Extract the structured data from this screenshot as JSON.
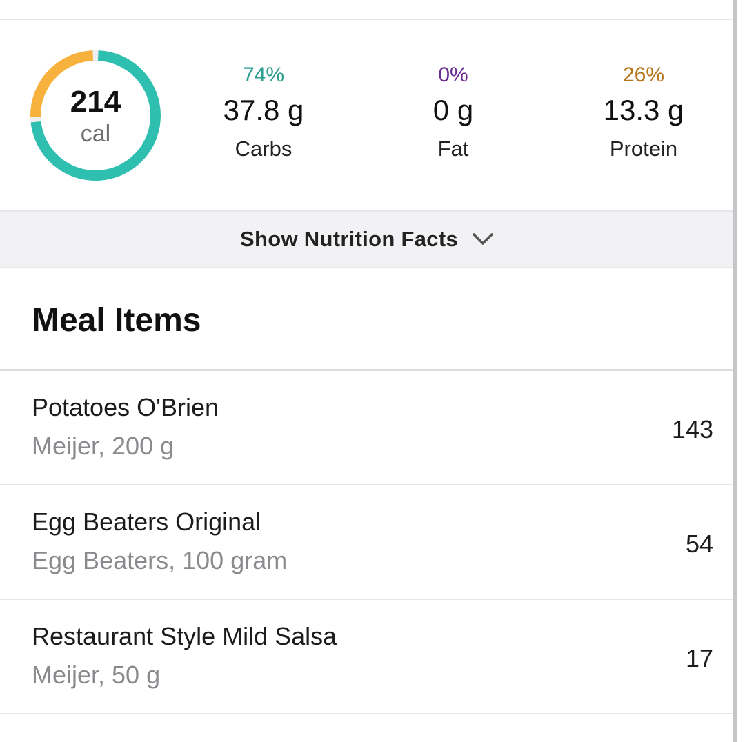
{
  "summary": {
    "calories": "214",
    "calories_unit": "cal",
    "ring": {
      "carbs_pct": 74,
      "fat_pct": 0,
      "protein_pct": 26
    },
    "macros": [
      {
        "pct": "74%",
        "grams": "37.8 g",
        "label": "Carbs",
        "color": "#2a9d8f"
      },
      {
        "pct": "0%",
        "grams": "0 g",
        "label": "Fat",
        "color": "#6b2c91"
      },
      {
        "pct": "26%",
        "grams": "13.3 g",
        "label": "Protein",
        "color": "#b5771a"
      }
    ],
    "ring_colors": {
      "carbs": "#2fbfb0",
      "protein": "#f6b23c",
      "fat": "#6b2c91"
    }
  },
  "nutrition_toggle": {
    "label": "Show Nutrition Facts",
    "icon": "chevron-down-icon"
  },
  "meal_section": {
    "title": "Meal Items",
    "items": [
      {
        "name": "Potatoes O'Brien",
        "detail": "Meijer, 200 g",
        "calories": "143"
      },
      {
        "name": "Egg Beaters Original",
        "detail": "Egg Beaters, 100 gram",
        "calories": "54"
      },
      {
        "name": "Restaurant Style Mild Salsa",
        "detail": "Meijer, 50 g",
        "calories": "17"
      }
    ]
  }
}
